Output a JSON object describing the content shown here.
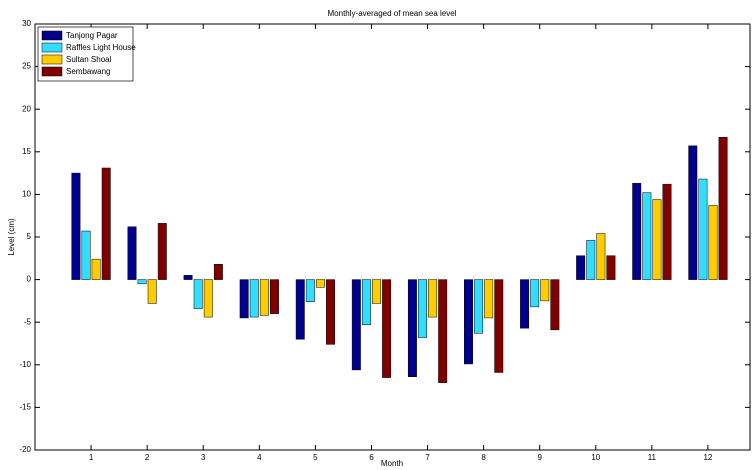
{
  "chart_data": {
    "type": "bar",
    "title": "Monthly-averaged of mean sea level",
    "x_label": "Month",
    "y_label": "Level (cm)",
    "categories": [
      "1",
      "2",
      "3",
      "4",
      "5",
      "6",
      "7",
      "8",
      "9",
      "10",
      "11",
      "12"
    ],
    "series": [
      {
        "name": "Tanjong Pagar",
        "color": "#00008f",
        "values": [
          12.5,
          6.2,
          0.5,
          -4.5,
          -7.0,
          -10.6,
          -11.4,
          -9.9,
          -5.7,
          2.8,
          11.3,
          15.7
        ]
      },
      {
        "name": "Raffles Light House",
        "color": "#33ddff",
        "values": [
          5.7,
          -0.5,
          -3.4,
          -4.4,
          -2.6,
          -5.3,
          -6.8,
          -6.3,
          -3.2,
          4.6,
          10.2,
          11.8
        ]
      },
      {
        "name": "Sultan Shoal",
        "color": "#ffcc00",
        "values": [
          2.4,
          -2.8,
          -4.4,
          -4.2,
          -0.9,
          -2.8,
          -4.4,
          -4.5,
          -2.5,
          5.4,
          9.4,
          8.7
        ]
      },
      {
        "name": "Sembawang",
        "color": "#800000",
        "values": [
          13.1,
          6.6,
          1.8,
          -4.0,
          -7.6,
          -11.5,
          -12.1,
          -10.9,
          -5.9,
          2.8,
          11.2,
          16.7
        ]
      }
    ],
    "ylim": [
      -20,
      30
    ],
    "yticks": [
      -20,
      -15,
      -10,
      -5,
      0,
      5,
      10,
      15,
      20,
      25,
      30
    ],
    "grid": false,
    "legend": "upper-left"
  }
}
